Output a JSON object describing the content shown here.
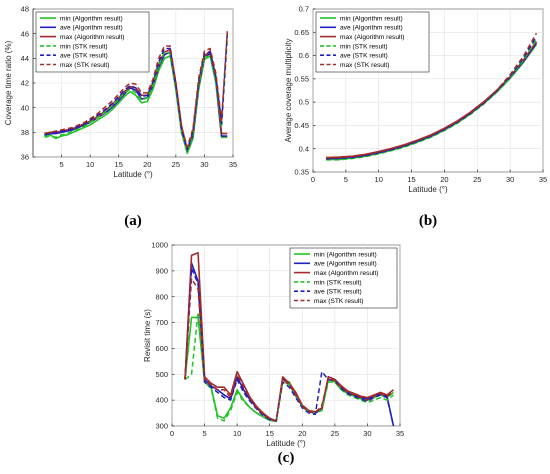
{
  "colors": {
    "min": "#22c322",
    "ave": "#1f1fbf",
    "max": "#a52a2a"
  },
  "legend_labels": [
    "min (Algorithm result)",
    "ave (Algorithm result)",
    "max (Algorithm result)",
    "min (STK result)",
    "ave (STK result)",
    "max (STK result)"
  ],
  "chart_data": [
    {
      "type": "line",
      "panel_label": "(a)",
      "xlabel": "Latitude (°)",
      "ylabel": "Coverage time ratio (%)",
      "xlim": [
        0,
        35
      ],
      "ylim": [
        36,
        48
      ],
      "xticks": [
        5,
        10,
        15,
        20,
        25,
        30,
        35
      ],
      "yticks": [
        36,
        38,
        40,
        42,
        44,
        46,
        48
      ],
      "grid": true,
      "legend_position": "top-left",
      "x": [
        2,
        3,
        4,
        5,
        6,
        7,
        8,
        9,
        10,
        11,
        12,
        13,
        14,
        15,
        16,
        17,
        18,
        19,
        20,
        21,
        22,
        23,
        24,
        25,
        26,
        27,
        28,
        29,
        30,
        31,
        32,
        33,
        34
      ],
      "series": [
        {
          "name": "min (Algorithm result)",
          "style": "solid",
          "color_key": "min",
          "values": [
            37.7,
            37.8,
            37.5,
            37.7,
            37.8,
            38.0,
            38.2,
            38.4,
            38.6,
            38.9,
            39.2,
            39.5,
            39.9,
            40.4,
            40.9,
            41.3,
            41.0,
            40.4,
            40.5,
            41.5,
            43.0,
            44.0,
            44.2,
            41.5,
            38.0,
            36.3,
            37.5,
            41.5,
            43.9,
            44.2,
            42.0,
            37.6,
            37.6
          ]
        },
        {
          "name": "ave (Algorithm result)",
          "style": "solid",
          "color_key": "ave",
          "values": [
            37.8,
            37.9,
            37.9,
            38.0,
            38.1,
            38.2,
            38.4,
            38.6,
            38.8,
            39.1,
            39.4,
            39.7,
            40.1,
            40.6,
            41.1,
            41.6,
            41.4,
            40.7,
            40.8,
            41.8,
            43.3,
            44.3,
            44.5,
            41.8,
            38.3,
            36.5,
            37.8,
            41.8,
            44.1,
            44.4,
            42.3,
            37.7,
            37.7
          ]
        },
        {
          "name": "max (Algorithm result)",
          "style": "solid",
          "color_key": "max",
          "values": [
            37.9,
            38.0,
            38.0,
            38.1,
            38.2,
            38.3,
            38.5,
            38.7,
            38.9,
            39.2,
            39.5,
            39.9,
            40.3,
            40.8,
            41.3,
            41.7,
            41.6,
            41.0,
            41.0,
            42.0,
            43.5,
            44.5,
            44.7,
            42.0,
            38.5,
            36.6,
            38.0,
            42.0,
            44.2,
            44.6,
            42.5,
            37.9,
            37.9
          ]
        },
        {
          "name": "min (STK result)",
          "style": "dashed",
          "color_key": "min",
          "values": [
            37.6,
            37.7,
            37.6,
            37.8,
            37.9,
            38.1,
            38.3,
            38.5,
            38.8,
            39.1,
            39.4,
            39.8,
            40.2,
            40.7,
            41.2,
            41.5,
            41.2,
            40.6,
            40.8,
            41.8,
            43.4,
            44.5,
            44.4,
            41.4,
            37.9,
            36.4,
            37.9,
            41.9,
            44.1,
            44.2,
            42.2,
            38.4,
            45.6
          ]
        },
        {
          "name": "ave (STK result)",
          "style": "dashed",
          "color_key": "ave",
          "values": [
            37.8,
            37.9,
            38.0,
            38.1,
            38.2,
            38.3,
            38.5,
            38.7,
            39.0,
            39.3,
            39.6,
            40.0,
            40.4,
            40.9,
            41.4,
            41.8,
            41.6,
            40.9,
            41.0,
            42.1,
            43.7,
            44.8,
            44.8,
            41.8,
            38.2,
            36.6,
            38.1,
            42.2,
            44.4,
            44.5,
            42.5,
            38.7,
            46.0
          ]
        },
        {
          "name": "max (STK result)",
          "style": "dashed",
          "color_key": "max",
          "values": [
            37.9,
            38.0,
            38.1,
            38.2,
            38.3,
            38.4,
            38.6,
            38.8,
            39.1,
            39.4,
            39.8,
            40.2,
            40.6,
            41.1,
            41.6,
            42.0,
            41.9,
            41.2,
            41.2,
            42.3,
            44.0,
            45.0,
            45.0,
            42.0,
            38.4,
            36.8,
            38.3,
            42.4,
            44.6,
            44.8,
            42.8,
            39.0,
            46.2
          ]
        }
      ]
    },
    {
      "type": "line",
      "panel_label": "(b)",
      "xlabel": "Latitude (°)",
      "ylabel": "Average coverage multiplicity",
      "xlim": [
        0,
        35
      ],
      "ylim": [
        0.35,
        0.7
      ],
      "xticks": [
        0,
        5,
        10,
        15,
        20,
        25,
        30,
        35
      ],
      "yticks": [
        0.35,
        0.4,
        0.45,
        0.5,
        0.55,
        0.6,
        0.65,
        0.7
      ],
      "grid": true,
      "legend_position": "top-left",
      "x": [
        2,
        4,
        6,
        8,
        10,
        12,
        14,
        16,
        18,
        20,
        22,
        24,
        26,
        28,
        30,
        32,
        34
      ],
      "series": [
        {
          "name": "min (Algorithm result)",
          "style": "solid",
          "color_key": "min",
          "values": [
            0.377,
            0.377,
            0.38,
            0.384,
            0.39,
            0.397,
            0.405,
            0.415,
            0.426,
            0.44,
            0.456,
            0.475,
            0.497,
            0.522,
            0.551,
            0.585,
            0.624
          ]
        },
        {
          "name": "ave (Algorithm result)",
          "style": "solid",
          "color_key": "ave",
          "values": [
            0.379,
            0.38,
            0.382,
            0.386,
            0.392,
            0.399,
            0.407,
            0.417,
            0.428,
            0.442,
            0.458,
            0.477,
            0.499,
            0.524,
            0.553,
            0.587,
            0.627
          ]
        },
        {
          "name": "max (Algorithm result)",
          "style": "solid",
          "color_key": "max",
          "values": [
            0.381,
            0.382,
            0.384,
            0.388,
            0.394,
            0.401,
            0.409,
            0.419,
            0.43,
            0.444,
            0.46,
            0.479,
            0.501,
            0.526,
            0.555,
            0.59,
            0.63
          ]
        },
        {
          "name": "min (STK result)",
          "style": "dashed",
          "color_key": "min",
          "values": [
            0.376,
            0.376,
            0.379,
            0.383,
            0.389,
            0.396,
            0.404,
            0.414,
            0.425,
            0.439,
            0.455,
            0.474,
            0.496,
            0.522,
            0.553,
            0.59,
            0.635
          ]
        },
        {
          "name": "ave (STK result)",
          "style": "dashed",
          "color_key": "ave",
          "values": [
            0.378,
            0.379,
            0.381,
            0.385,
            0.391,
            0.398,
            0.406,
            0.416,
            0.427,
            0.441,
            0.457,
            0.476,
            0.498,
            0.524,
            0.556,
            0.594,
            0.641
          ]
        },
        {
          "name": "max (STK result)",
          "style": "dashed",
          "color_key": "max",
          "values": [
            0.38,
            0.381,
            0.383,
            0.387,
            0.393,
            0.4,
            0.408,
            0.418,
            0.429,
            0.443,
            0.459,
            0.478,
            0.5,
            0.526,
            0.559,
            0.598,
            0.648
          ]
        }
      ]
    },
    {
      "type": "line",
      "panel_label": "(c)",
      "xlabel": "Latitude (°)",
      "ylabel": "Revisit time (s)",
      "xlim": [
        0,
        35
      ],
      "ylim": [
        300,
        1000
      ],
      "xticks": [
        0,
        5,
        10,
        15,
        20,
        25,
        30,
        35
      ],
      "yticks": [
        300,
        400,
        500,
        600,
        700,
        800,
        900,
        1000
      ],
      "grid": true,
      "legend_position": "top-right",
      "x": [
        2,
        3,
        4,
        5,
        6,
        7,
        8,
        9,
        10,
        11,
        12,
        13,
        14,
        15,
        16,
        17,
        18,
        19,
        20,
        21,
        22,
        23,
        24,
        25,
        26,
        27,
        28,
        29,
        30,
        31,
        32,
        33,
        34
      ],
      "series": [
        {
          "name": "min (Algorithm result)",
          "style": "solid",
          "color_key": "min",
          "values": [
            480,
            720,
            720,
            470,
            450,
            340,
            330,
            370,
            440,
            400,
            370,
            350,
            335,
            322,
            318,
            480,
            470,
            420,
            380,
            360,
            355,
            360,
            480,
            470,
            440,
            425,
            415,
            405,
            400,
            410,
            420,
            410,
            430
          ]
        },
        {
          "name": "ave (Algorithm result)",
          "style": "solid",
          "color_key": "ave",
          "values": [
            480,
            930,
            860,
            480,
            455,
            440,
            420,
            405,
            490,
            440,
            400,
            370,
            345,
            325,
            320,
            485,
            460,
            420,
            375,
            355,
            350,
            365,
            490,
            480,
            450,
            430,
            420,
            410,
            405,
            415,
            425,
            415,
            300
          ]
        },
        {
          "name": "max (Algorithm result)",
          "style": "solid",
          "color_key": "max",
          "values": [
            480,
            960,
            970,
            490,
            465,
            450,
            450,
            420,
            510,
            460,
            410,
            375,
            350,
            330,
            320,
            490,
            465,
            430,
            380,
            360,
            355,
            370,
            490,
            480,
            455,
            435,
            425,
            415,
            410,
            420,
            430,
            420,
            440
          ]
        },
        {
          "name": "min (STK result)",
          "style": "dashed",
          "color_key": "min",
          "values": [
            480,
            500,
            740,
            470,
            445,
            330,
            320,
            360,
            430,
            395,
            370,
            350,
            335,
            322,
            318,
            470,
            460,
            415,
            375,
            355,
            350,
            360,
            470,
            470,
            440,
            420,
            410,
            400,
            390,
            400,
            410,
            400,
            420
          ]
        },
        {
          "name": "ave (STK result)",
          "style": "dashed",
          "color_key": "ave",
          "values": [
            480,
            910,
            850,
            470,
            450,
            430,
            410,
            400,
            480,
            430,
            395,
            365,
            340,
            325,
            320,
            470,
            450,
            410,
            370,
            350,
            345,
            510,
            480,
            475,
            445,
            425,
            415,
            405,
            395,
            410,
            420,
            410,
            300
          ]
        },
        {
          "name": "max (STK result)",
          "style": "dashed",
          "color_key": "max",
          "values": [
            480,
            870,
            830,
            480,
            460,
            440,
            440,
            410,
            500,
            450,
            405,
            370,
            345,
            328,
            320,
            480,
            460,
            420,
            375,
            355,
            350,
            380,
            485,
            475,
            450,
            430,
            420,
            410,
            400,
            415,
            425,
            415,
            430
          ]
        }
      ]
    }
  ]
}
